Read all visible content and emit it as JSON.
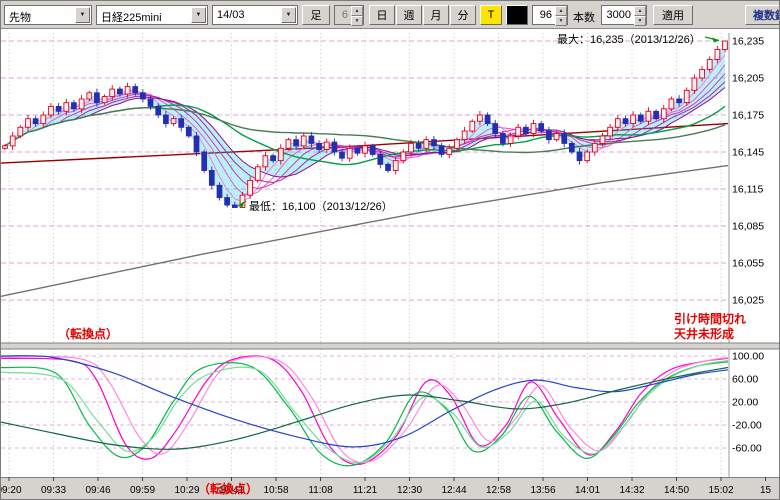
{
  "toolbar": {
    "instrument_combo": "先物",
    "symbol_combo": "日経225mini",
    "month_combo": "14/03",
    "ashi_button": "足",
    "interval_spin": "6",
    "period_day": "日",
    "period_week": "週",
    "period_month": "月",
    "period_minute": "分",
    "tick_button": "T",
    "bars_visible_spin": "96",
    "bars_label": "本数",
    "bars_total_spin": "3000",
    "apply_button": "適用",
    "multi_symbol_button": "複数銘柄"
  },
  "annotations": {
    "max_label": "最大：16,235（2013/12/26）",
    "min_label": "最低：16,100（2013/12/26）",
    "notice_line1": "引け時間切れ",
    "notice_line2": "天井未形成",
    "turning_point_top": "（転換点）",
    "turning_point_bottom": "（転換点）"
  },
  "chart_data": [
    {
      "type": "candlestick",
      "name": "nikkei225mini-minute-chart",
      "y_ticks": [
        "16,235",
        "16,205",
        "16,175",
        "16,145",
        "16,115",
        "16,085",
        "16,055",
        "16,025"
      ],
      "y_values": [
        16235,
        16205,
        16175,
        16145,
        16115,
        16085,
        16055,
        16025
      ],
      "x_labels": [
        "09:20",
        "09:33",
        "09:46",
        "09:59",
        "10:29",
        "10:41",
        "10:58",
        "11:08",
        "11:21",
        "12:30",
        "12:44",
        "12:58",
        "13:56",
        "14:01",
        "14:32",
        "14:50",
        "15:02",
        "15"
      ],
      "max_point": {
        "price": 16235,
        "date": "2013/12/26"
      },
      "min_point": {
        "price": 16100,
        "date": "2013/12/26"
      },
      "closes": [
        16150,
        16158,
        16165,
        16172,
        16168,
        16175,
        16182,
        16178,
        16185,
        16180,
        16188,
        16193,
        16185,
        16190,
        16196,
        16192,
        16198,
        16193,
        16188,
        16182,
        16175,
        16168,
        16172,
        16165,
        16158,
        16145,
        16130,
        16118,
        16108,
        16102,
        16100,
        16110,
        16122,
        16133,
        16142,
        16138,
        16148,
        16155,
        16150,
        16158,
        16152,
        16147,
        16153,
        16145,
        16140,
        16148,
        16144,
        16150,
        16143,
        16135,
        16130,
        16138,
        16145,
        16152,
        16148,
        16155,
        16150,
        16143,
        16148,
        16155,
        16162,
        16170,
        16175,
        16168,
        16160,
        16152,
        16158,
        16165,
        16160,
        16168,
        16162,
        16155,
        16160,
        16152,
        16145,
        16138,
        16145,
        16152,
        16158,
        16165,
        16172,
        16168,
        16175,
        16170,
        16178,
        16172,
        16180,
        16188,
        16185,
        16195,
        16205,
        16212,
        16220,
        16228,
        16235
      ],
      "candle_up_color": "#e00020",
      "candle_down_color": "#2030b0",
      "ribbon_periods": [
        2,
        4,
        6,
        8,
        10,
        12
      ],
      "ribbon_colors": [
        "#ffaaee",
        "#ff77dd",
        "#f055cc",
        "#d633bb",
        "#b81fa8",
        "#8f0f90"
      ],
      "band_fill": "rgba(0,210,225,0.28)",
      "green_ma": {
        "periods": [
          20,
          45
        ],
        "colors": [
          "#00a040",
          "#4a7a50"
        ]
      },
      "trend_lines": [
        {
          "name": "long-maroon",
          "color": "#990000",
          "points": [
            [
              0,
              16136
            ],
            [
              360,
              16150
            ],
            [
              727,
              16168
            ]
          ]
        },
        {
          "name": "long-gray",
          "color": "#707070",
          "points": [
            [
              0,
              16028
            ],
            [
              200,
              16062
            ],
            [
              420,
              16096
            ],
            [
              600,
              16120
            ],
            [
              727,
              16134
            ]
          ]
        }
      ]
    },
    {
      "type": "line",
      "name": "oscillator-panel",
      "ylim": [
        -100,
        100
      ],
      "y_ticks": [
        "100.00",
        "60.00",
        "20.00",
        "-20.00",
        "-60.00"
      ],
      "y_values": [
        100,
        60,
        20,
        -20,
        -60
      ],
      "series": [
        {
          "name": "rci-short-magenta",
          "color": "#ff00cc",
          "points": [
            [
              0,
              96
            ],
            [
              70,
              92
            ],
            [
              95,
              60
            ],
            [
              125,
              -55
            ],
            [
              150,
              -78
            ],
            [
              175,
              -30
            ],
            [
              205,
              55
            ],
            [
              230,
              93
            ],
            [
              270,
              95
            ],
            [
              300,
              40
            ],
            [
              330,
              -60
            ],
            [
              360,
              -88
            ],
            [
              395,
              -40
            ],
            [
              425,
              55
            ],
            [
              450,
              30
            ],
            [
              478,
              -55
            ],
            [
              505,
              -20
            ],
            [
              530,
              55
            ],
            [
              558,
              -10
            ],
            [
              588,
              -72
            ],
            [
              615,
              -30
            ],
            [
              640,
              35
            ],
            [
              668,
              75
            ],
            [
              700,
              90
            ],
            [
              727,
              96
            ]
          ]
        },
        {
          "name": "rci-short-pink",
          "color": "#ff88dd",
          "points": [
            [
              0,
              98
            ],
            [
              80,
              95
            ],
            [
              108,
              55
            ],
            [
              138,
              -40
            ],
            [
              162,
              -70
            ],
            [
              188,
              -15
            ],
            [
              215,
              65
            ],
            [
              240,
              96
            ],
            [
              280,
              90
            ],
            [
              310,
              30
            ],
            [
              342,
              -68
            ],
            [
              372,
              -82
            ],
            [
              405,
              -28
            ],
            [
              435,
              48
            ],
            [
              460,
              18
            ],
            [
              488,
              -48
            ],
            [
              515,
              -8
            ],
            [
              540,
              48
            ],
            [
              568,
              -22
            ],
            [
              598,
              -65
            ],
            [
              625,
              -18
            ],
            [
              650,
              42
            ],
            [
              678,
              78
            ],
            [
              710,
              93
            ],
            [
              727,
              97
            ]
          ]
        },
        {
          "name": "rci-mid-green",
          "color": "#00bb44",
          "points": [
            [
              0,
              80
            ],
            [
              55,
              70
            ],
            [
              88,
              -20
            ],
            [
              118,
              -75
            ],
            [
              145,
              -55
            ],
            [
              172,
              20
            ],
            [
              200,
              78
            ],
            [
              250,
              82
            ],
            [
              288,
              10
            ],
            [
              320,
              -70
            ],
            [
              352,
              -90
            ],
            [
              385,
              -50
            ],
            [
              415,
              35
            ],
            [
              445,
              8
            ],
            [
              472,
              -65
            ],
            [
              500,
              -40
            ],
            [
              528,
              30
            ],
            [
              555,
              -30
            ],
            [
              585,
              -78
            ],
            [
              612,
              -40
            ],
            [
              638,
              20
            ],
            [
              665,
              60
            ],
            [
              695,
              82
            ],
            [
              727,
              90
            ]
          ]
        },
        {
          "name": "rci-mid-lightgreen",
          "color": "#77dd99",
          "points": [
            [
              0,
              72
            ],
            [
              60,
              60
            ],
            [
              95,
              -10
            ],
            [
              125,
              -65
            ],
            [
              152,
              -42
            ],
            [
              180,
              30
            ],
            [
              210,
              70
            ],
            [
              258,
              75
            ],
            [
              295,
              0
            ],
            [
              328,
              -62
            ],
            [
              360,
              -85
            ],
            [
              392,
              -42
            ],
            [
              422,
              28
            ],
            [
              452,
              0
            ],
            [
              480,
              -58
            ],
            [
              508,
              -32
            ],
            [
              535,
              22
            ],
            [
              562,
              -38
            ],
            [
              592,
              -70
            ],
            [
              618,
              -32
            ],
            [
              645,
              28
            ],
            [
              672,
              65
            ],
            [
              702,
              85
            ],
            [
              727,
              92
            ]
          ]
        },
        {
          "name": "slow-blue",
          "color": "#2244cc",
          "points": [
            [
              0,
              100
            ],
            [
              50,
              98
            ],
            [
              110,
              72
            ],
            [
              170,
              30
            ],
            [
              230,
              -8
            ],
            [
              290,
              -38
            ],
            [
              350,
              -58
            ],
            [
              400,
              -42
            ],
            [
              450,
              5
            ],
            [
              495,
              42
            ],
            [
              535,
              58
            ],
            [
              575,
              45
            ],
            [
              615,
              38
            ],
            [
              655,
              52
            ],
            [
              695,
              68
            ],
            [
              727,
              76
            ]
          ]
        },
        {
          "name": "slow-darkgreen",
          "color": "#116644",
          "points": [
            [
              0,
              -15
            ],
            [
              55,
              -35
            ],
            [
              115,
              -55
            ],
            [
              175,
              -62
            ],
            [
              235,
              -45
            ],
            [
              295,
              -15
            ],
            [
              350,
              15
            ],
            [
              405,
              32
            ],
            [
              460,
              22
            ],
            [
              515,
              8
            ],
            [
              565,
              18
            ],
            [
              615,
              40
            ],
            [
              660,
              58
            ],
            [
              700,
              72
            ],
            [
              727,
              80
            ]
          ]
        }
      ]
    }
  ]
}
